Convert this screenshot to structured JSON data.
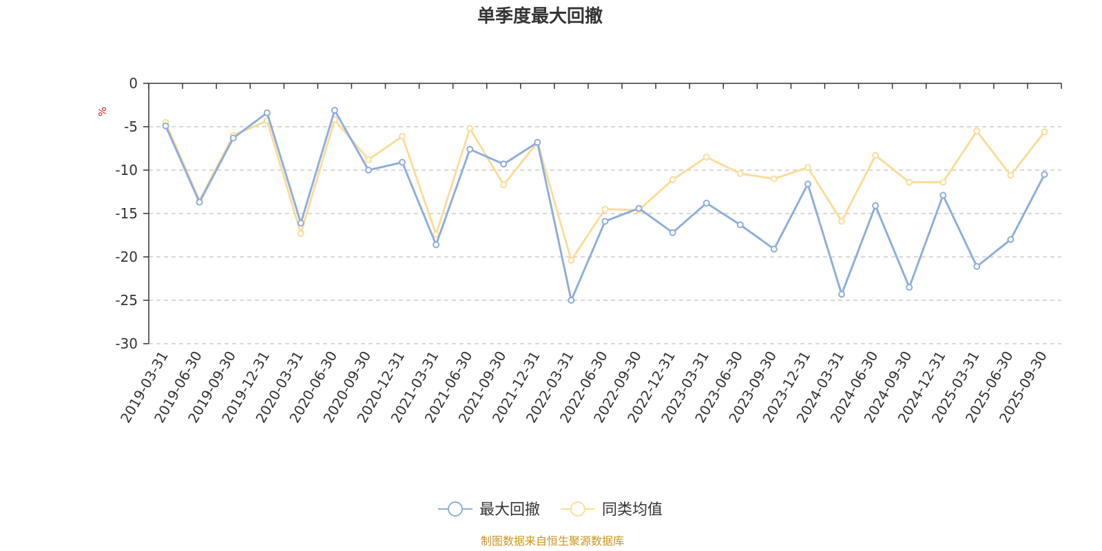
{
  "colors": {
    "series_1": "#8eaedc",
    "series_2": "#fcdc98",
    "grid": "#cccccc",
    "axis": "#333333",
    "source": "#c8961e",
    "unit": "#e02020"
  },
  "source_note": "制图数据来自恒生聚源数据库",
  "chart_data": {
    "type": "line",
    "title": "单季度最大回撤",
    "ylabel": "%",
    "ylim": [
      -30,
      0
    ],
    "yticks": [
      0,
      -5,
      -10,
      -15,
      -20,
      -25,
      -30
    ],
    "grid": true,
    "legend_position": "bottom-center",
    "categories": [
      "2019-03-31",
      "2019-06-30",
      "2019-09-30",
      "2019-12-31",
      "2020-03-31",
      "2020-06-30",
      "2020-09-30",
      "2020-12-31",
      "2021-03-31",
      "2021-06-30",
      "2021-09-30",
      "2021-12-31",
      "2022-03-31",
      "2022-06-30",
      "2022-09-30",
      "2022-12-31",
      "2023-03-31",
      "2023-06-30",
      "2023-09-30",
      "2023-12-31",
      "2024-03-31",
      "2024-06-30",
      "2024-09-30",
      "2024-12-31",
      "2025-03-31",
      "2025-06-30",
      "2025-09-30"
    ],
    "series": [
      {
        "name": "最大回撤",
        "values": [
          -4.9,
          -13.7,
          -6.3,
          -3.4,
          -16.1,
          -3.1,
          -10.0,
          -9.1,
          -18.6,
          -7.6,
          -9.3,
          -6.8,
          -25.0,
          -15.9,
          -14.4,
          -17.2,
          -13.8,
          -16.3,
          -19.1,
          -11.6,
          -24.3,
          -14.1,
          -23.5,
          -12.9,
          -21.1,
          -18.0,
          -10.5
        ]
      },
      {
        "name": "同类均值",
        "values": [
          -4.5,
          -13.5,
          -6.0,
          -4.3,
          -17.3,
          -4.2,
          -8.8,
          -6.1,
          -17.4,
          -5.2,
          -11.7,
          -6.8,
          -20.4,
          -14.5,
          -14.6,
          -11.1,
          -8.5,
          -10.4,
          -11.0,
          -9.7,
          -15.9,
          -8.3,
          -11.4,
          -11.4,
          -5.5,
          -10.6,
          -5.6
        ]
      }
    ]
  }
}
